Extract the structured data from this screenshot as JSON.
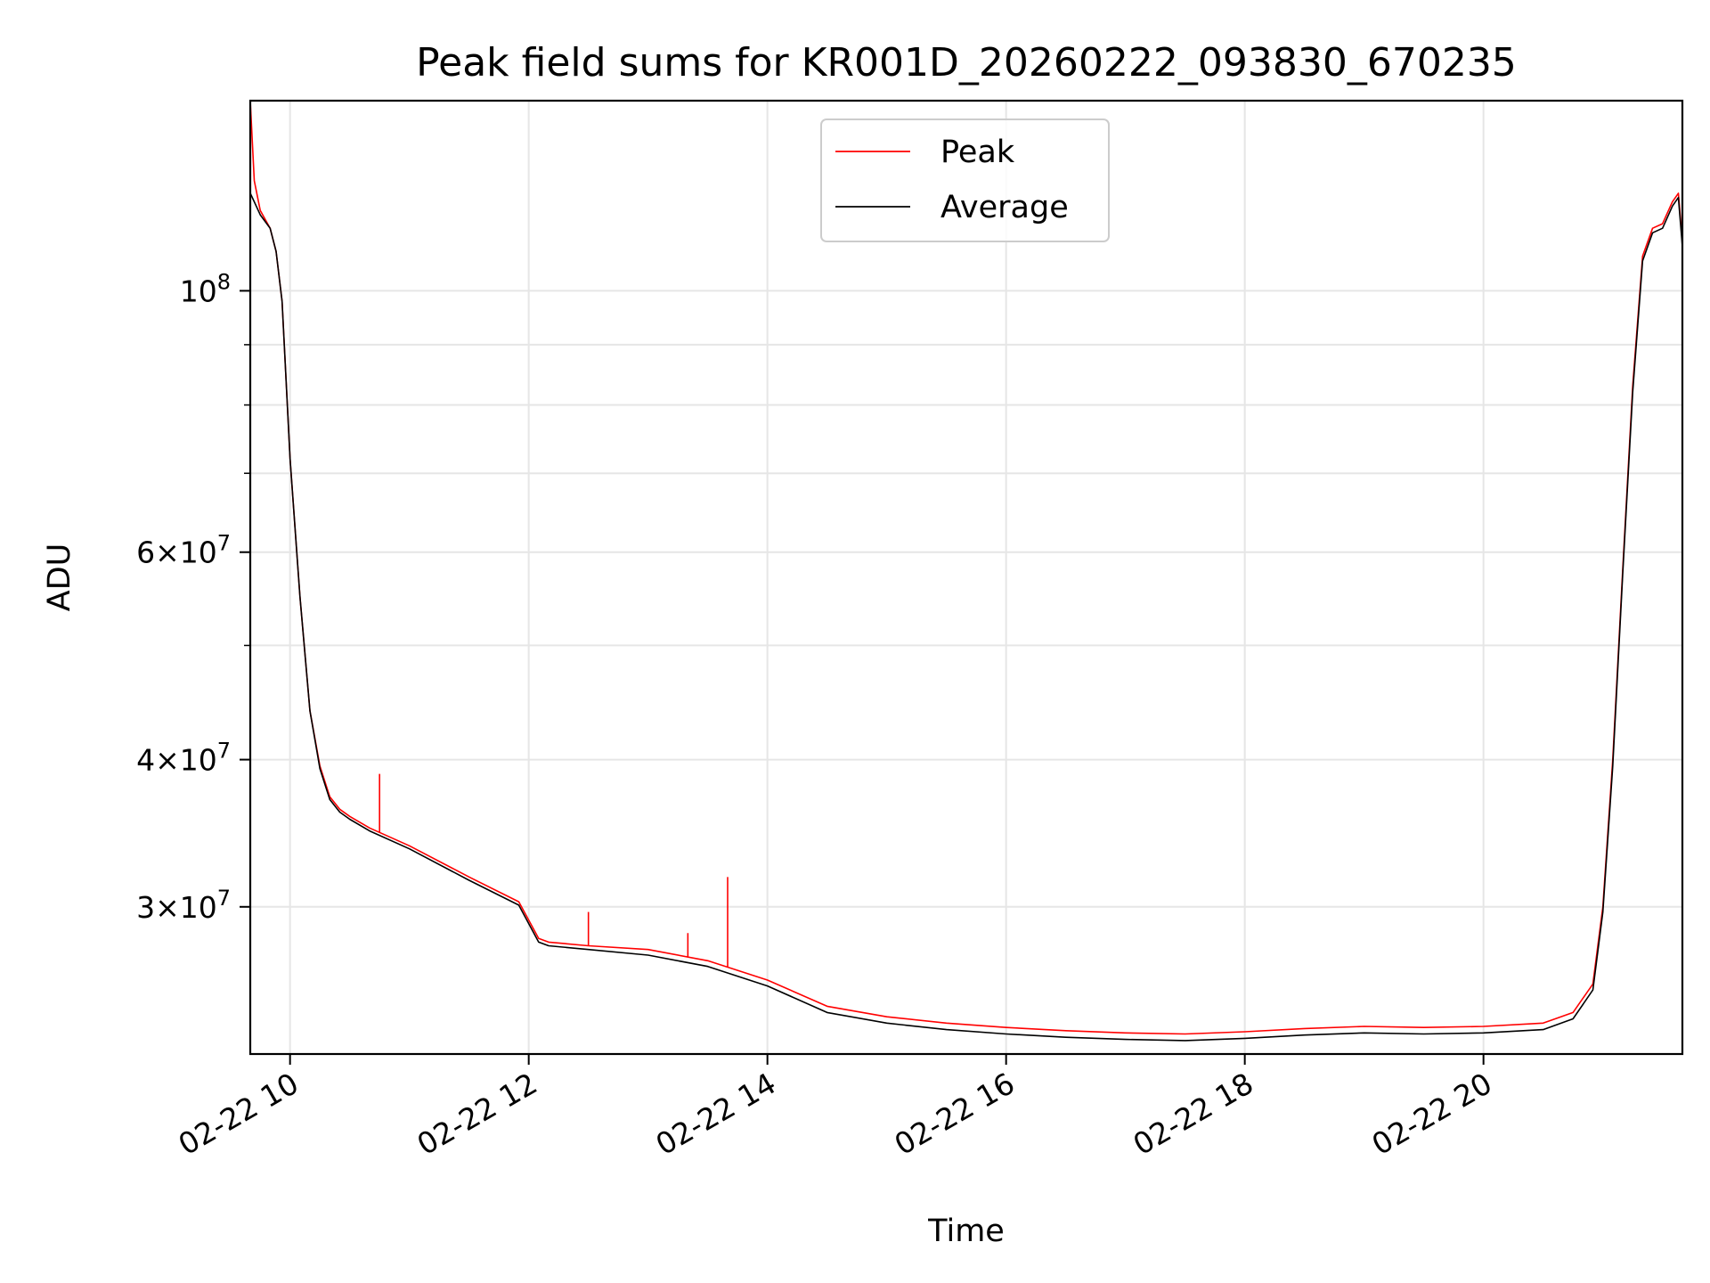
{
  "chart_data": {
    "type": "line",
    "title": "Peak field sums for KR001D_20260222_093830_670235",
    "xlabel": "Time",
    "ylabel": "ADU",
    "yscale": "log",
    "ylim": [
      22500000,
      145000000
    ],
    "xlim": [
      "2026-02-22 09:40",
      "2026-02-22 21:40"
    ],
    "grid": true,
    "legend_position": "upper center",
    "x_ticks": [
      {
        "value": "2026-02-22 10:00",
        "label": "02-22 10"
      },
      {
        "value": "2026-02-22 12:00",
        "label": "02-22 12"
      },
      {
        "value": "2026-02-22 14:00",
        "label": "02-22 14"
      },
      {
        "value": "2026-02-22 16:00",
        "label": "02-22 16"
      },
      {
        "value": "2026-02-22 18:00",
        "label": "02-22 18"
      },
      {
        "value": "2026-02-22 20:00",
        "label": "02-22 20"
      }
    ],
    "y_major_ticks": [
      {
        "value": 30000000,
        "base": "3",
        "exp": "7"
      },
      {
        "value": 40000000,
        "base": "4",
        "exp": "7"
      },
      {
        "value": 60000000,
        "base": "6",
        "exp": "7"
      },
      {
        "value": 100000000,
        "base": "",
        "exp": "8"
      }
    ],
    "y_minor_ticks": [
      50000000,
      70000000,
      80000000,
      90000000
    ],
    "x": [
      "2026-02-22 09:40",
      "2026-02-22 09:42",
      "2026-02-22 09:45",
      "2026-02-22 09:50",
      "2026-02-22 09:53",
      "2026-02-22 09:56",
      "2026-02-22 10:00",
      "2026-02-22 10:05",
      "2026-02-22 10:10",
      "2026-02-22 10:15",
      "2026-02-22 10:20",
      "2026-02-22 10:25",
      "2026-02-22 10:30",
      "2026-02-22 10:40",
      "2026-02-22 11:00",
      "2026-02-22 11:30",
      "2026-02-22 11:55",
      "2026-02-22 12:05",
      "2026-02-22 12:10",
      "2026-02-22 12:30",
      "2026-02-22 13:00",
      "2026-02-22 13:30",
      "2026-02-22 14:00",
      "2026-02-22 14:30",
      "2026-02-22 15:00",
      "2026-02-22 15:30",
      "2026-02-22 16:00",
      "2026-02-22 16:30",
      "2026-02-22 17:00",
      "2026-02-22 17:30",
      "2026-02-22 18:00",
      "2026-02-22 18:30",
      "2026-02-22 19:00",
      "2026-02-22 19:30",
      "2026-02-22 20:00",
      "2026-02-22 20:30",
      "2026-02-22 20:45",
      "2026-02-22 20:55",
      "2026-02-22 21:00",
      "2026-02-22 21:05",
      "2026-02-22 21:10",
      "2026-02-22 21:15",
      "2026-02-22 21:20",
      "2026-02-22 21:25",
      "2026-02-22 21:30",
      "2026-02-22 21:35",
      "2026-02-22 21:38",
      "2026-02-22 21:40"
    ],
    "series": [
      {
        "name": "Peak",
        "color": "#ff0000",
        "values": [
          145000000,
          124000000,
          117000000,
          113000000,
          108000000,
          98000000,
          72000000,
          55000000,
          44000000,
          39500000,
          37200000,
          36300000,
          35800000,
          35000000,
          33800000,
          31800000,
          30300000,
          28200000,
          28000000,
          27800000,
          27600000,
          27000000,
          26000000,
          24700000,
          24200000,
          23900000,
          23700000,
          23550000,
          23450000,
          23400000,
          23500000,
          23650000,
          23750000,
          23700000,
          23750000,
          23900000,
          24400000,
          25800000,
          30000000,
          40000000,
          58000000,
          83000000,
          107000000,
          113000000,
          114000000,
          119000000,
          121000000,
          110000000
        ]
      },
      {
        "name": "Average",
        "color": "#000000",
        "values": [
          121000000,
          119000000,
          116000000,
          113000000,
          108000000,
          98000000,
          72000000,
          55000000,
          44000000,
          39300000,
          37000000,
          36100000,
          35600000,
          34800000,
          33600000,
          31600000,
          30100000,
          28000000,
          27800000,
          27600000,
          27300000,
          26700000,
          25700000,
          24400000,
          23900000,
          23600000,
          23400000,
          23250000,
          23150000,
          23100000,
          23200000,
          23350000,
          23450000,
          23400000,
          23450000,
          23600000,
          24100000,
          25500000,
          29700000,
          39500000,
          57500000,
          82000000,
          106000000,
          112000000,
          113000000,
          118000000,
          120000000,
          109000000
        ]
      }
    ],
    "annotations_spikes_peak": [
      {
        "x": "2026-02-22 10:45",
        "value": 38900000
      },
      {
        "x": "2026-02-22 12:30",
        "value": 29700000
      },
      {
        "x": "2026-02-22 13:20",
        "value": 28500000
      },
      {
        "x": "2026-02-22 13:40",
        "value": 31800000
      }
    ]
  }
}
